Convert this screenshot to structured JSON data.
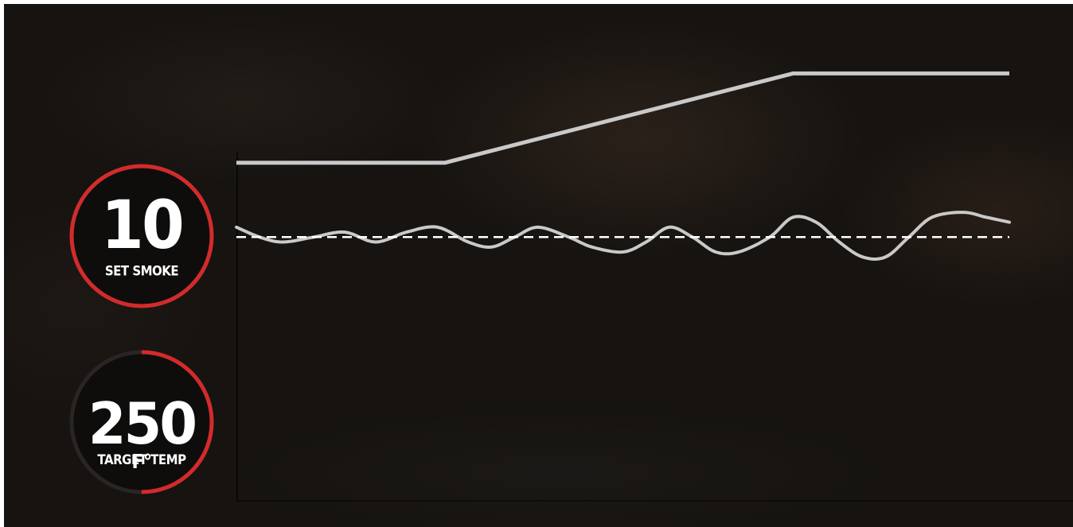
{
  "gauges": {
    "smoke": {
      "value": "10",
      "label": "SET SMOKE",
      "fill_fraction": 1.0
    },
    "temp": {
      "unit": "F°",
      "value": "250",
      "label": "TARGET TEMP",
      "fill_fraction": 0.5
    }
  },
  "colors": {
    "ring_active": "#d22b2b",
    "ring_track": "#2a2522",
    "gauge_fill": "#0e0d0c",
    "line": "#c9c9c9",
    "setpoint": "#ffffff",
    "text": "#ffffff"
  },
  "chart_data": {
    "type": "line",
    "title": "",
    "xlabel": "",
    "ylabel": "",
    "grid": false,
    "xlim": [
      0,
      100
    ],
    "ylim": [
      0,
      100
    ],
    "series": [
      {
        "role": "smoke",
        "points": [
          [
            0,
            68
          ],
          [
            27,
            68
          ],
          [
            72,
            86
          ],
          [
            100,
            86
          ]
        ]
      },
      {
        "role": "temperature",
        "points": [
          [
            0,
            55
          ],
          [
            3,
            53
          ],
          [
            6,
            52
          ],
          [
            10,
            53
          ],
          [
            14,
            54
          ],
          [
            18,
            52
          ],
          [
            22,
            54
          ],
          [
            26,
            55
          ],
          [
            30,
            52
          ],
          [
            33,
            51
          ],
          [
            36,
            53
          ],
          [
            39,
            55
          ],
          [
            43,
            53
          ],
          [
            46,
            51
          ],
          [
            50,
            50
          ],
          [
            53,
            52
          ],
          [
            56,
            55
          ],
          [
            59,
            53
          ],
          [
            62,
            50
          ],
          [
            65,
            50
          ],
          [
            69,
            53
          ],
          [
            72,
            57
          ],
          [
            75,
            56
          ],
          [
            78,
            52
          ],
          [
            81,
            49
          ],
          [
            84,
            49
          ],
          [
            87,
            53
          ],
          [
            90,
            57
          ],
          [
            94,
            58
          ],
          [
            97,
            57
          ],
          [
            100,
            56
          ]
        ]
      },
      {
        "role": "target",
        "style": "dashed",
        "points": [
          [
            0,
            53
          ],
          [
            100,
            53
          ]
        ]
      }
    ]
  }
}
